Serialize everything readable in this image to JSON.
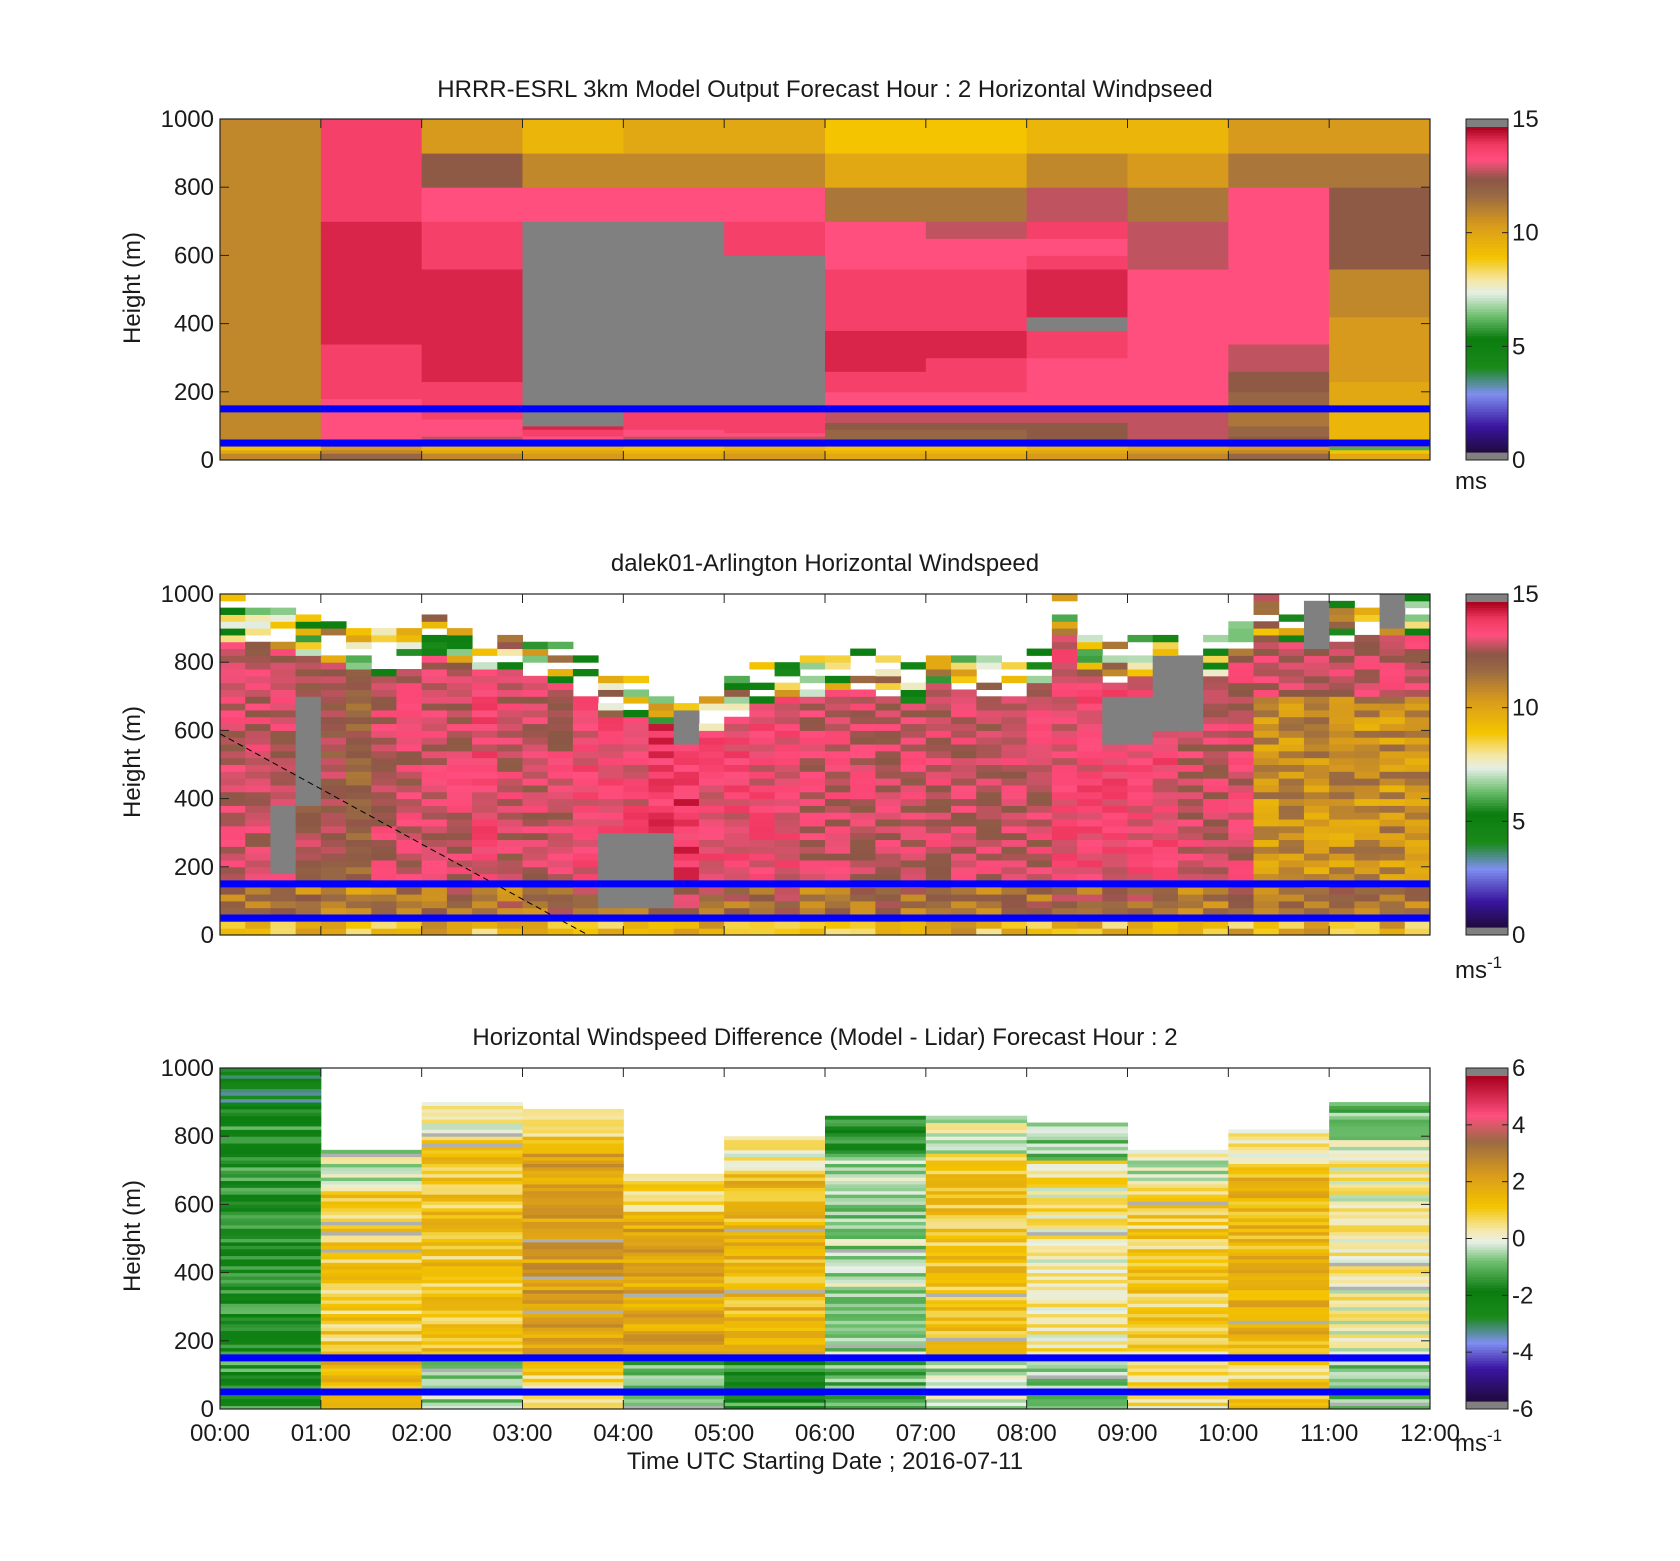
{
  "figure": {
    "panels": [
      {
        "title": "HRRR-ESRL 3km Model Output   Forecast Hour : 2 Horizontal Windpseed",
        "ylabel": "Height (m)",
        "colorbar_unit": "ms",
        "colorbar_sup": ""
      },
      {
        "title": "dalek01-Arlington  Horizontal Windspeed",
        "ylabel": "Height (m)",
        "colorbar_unit": "ms",
        "colorbar_sup": "-1"
      },
      {
        "title": "Horizontal Windspeed Difference (Model - Lidar) Forecast Hour : 2",
        "ylabel": "Height (m)",
        "colorbar_unit": "ms",
        "colorbar_sup": "-1"
      }
    ],
    "xlabel": "Time UTC  Starting Date ; 2016-07-11"
  },
  "chart_data": [
    {
      "type": "heatmap",
      "title": "HRRR-ESRL 3km Model Output   Forecast Hour : 2 Horizontal Windpseed",
      "ylabel": "Height (m)",
      "x_ticks": [
        "00:00",
        "01:00",
        "02:00",
        "03:00",
        "04:00",
        "05:00",
        "06:00",
        "07:00",
        "08:00",
        "09:00",
        "10:00",
        "11:00",
        "12:00"
      ],
      "xlim": [
        0,
        12
      ],
      "y_ticks": [
        0,
        200,
        400,
        600,
        800,
        1000
      ],
      "ylim": [
        0,
        1000
      ],
      "colorbar": {
        "range": [
          0,
          15
        ],
        "ticks": [
          0,
          5,
          10,
          15
        ],
        "unit": "ms"
      },
      "missing_color": "#808080",
      "x_step_hours": 1,
      "row_bounds_m": [
        0,
        20,
        30,
        40,
        50,
        60,
        70,
        80,
        90,
        100,
        110,
        120,
        130,
        140,
        150,
        160,
        180,
        200,
        230,
        260,
        300,
        340,
        380,
        420,
        470,
        510,
        560,
        600,
        650,
        700,
        800,
        900,
        1000
      ],
      "values": [
        [
          11.0,
          12.0,
          11.0,
          10.5,
          10.0,
          10.5,
          10.0,
          10.0,
          10.5,
          11.0,
          12.0,
          10.0
        ],
        [
          10.0,
          11.0,
          10.0,
          10.0,
          9.5,
          10.0,
          9.5,
          9.5,
          10.0,
          10.5,
          11.0,
          9.0
        ],
        [
          9.0,
          10.5,
          9.5,
          9.5,
          9.0,
          9.5,
          9.0,
          9.0,
          9.5,
          10.0,
          10.5,
          6.0
        ],
        [
          10.0,
          12.0,
          11.0,
          11.0,
          10.5,
          11.0,
          10.5,
          10.5,
          11.0,
          11.5,
          12.0,
          9.0
        ],
        [
          10.5,
          13.0,
          12.0,
          12.5,
          12.0,
          12.5,
          11.5,
          11.5,
          12.0,
          12.5,
          12.5,
          9.5
        ],
        [
          11.0,
          13.5,
          13.0,
          13.5,
          13.0,
          13.0,
          12.0,
          12.0,
          12.5,
          13.0,
          12.5,
          9.5
        ],
        [
          11.0,
          13.5,
          13.5,
          14.0,
          13.5,
          13.5,
          12.0,
          12.0,
          12.5,
          13.0,
          12.0,
          9.5
        ],
        [
          11.0,
          13.5,
          13.5,
          14.0,
          13.5,
          14.0,
          12.0,
          12.0,
          12.5,
          13.0,
          12.0,
          9.5
        ],
        [
          11.0,
          13.5,
          13.5,
          14.5,
          14.0,
          14.0,
          12.5,
          12.5,
          12.5,
          13.0,
          12.0,
          9.5
        ],
        [
          11.0,
          13.5,
          13.5,
          null,
          14.0,
          14.0,
          12.5,
          12.5,
          12.5,
          13.0,
          11.5,
          9.5
        ],
        [
          11.0,
          13.5,
          13.5,
          null,
          14.0,
          14.0,
          13.0,
          13.0,
          13.0,
          13.0,
          11.5,
          9.5
        ],
        [
          11.0,
          13.5,
          14.0,
          null,
          14.0,
          14.0,
          13.0,
          13.0,
          13.0,
          13.0,
          11.5,
          9.5
        ],
        [
          11.0,
          13.5,
          14.0,
          null,
          14.0,
          14.0,
          13.0,
          13.0,
          13.0,
          13.0,
          11.5,
          9.5
        ],
        [
          11.0,
          13.5,
          14.0,
          null,
          14.0,
          14.0,
          13.0,
          13.0,
          13.0,
          13.0,
          11.5,
          9.5
        ],
        [
          11.0,
          13.5,
          14.0,
          null,
          null,
          null,
          13.5,
          13.5,
          13.5,
          13.5,
          12.0,
          9.5
        ],
        [
          11.0,
          13.5,
          14.0,
          null,
          null,
          null,
          13.5,
          13.5,
          13.5,
          13.5,
          12.0,
          10.0
        ],
        [
          11.0,
          14.0,
          14.0,
          null,
          null,
          null,
          13.5,
          13.5,
          13.5,
          13.5,
          12.0,
          10.0
        ],
        [
          11.0,
          14.0,
          14.0,
          null,
          null,
          null,
          14.0,
          14.0,
          13.5,
          13.5,
          12.5,
          10.0
        ],
        [
          11.0,
          14.0,
          14.5,
          null,
          null,
          null,
          14.0,
          14.0,
          13.5,
          13.5,
          12.5,
          10.5
        ],
        [
          11.0,
          14.0,
          14.5,
          null,
          null,
          null,
          14.5,
          14.0,
          13.5,
          13.5,
          13.0,
          10.5
        ],
        [
          11.0,
          14.0,
          14.5,
          null,
          null,
          null,
          14.5,
          14.5,
          14.0,
          13.5,
          13.0,
          10.5
        ],
        [
          11.0,
          14.5,
          14.5,
          null,
          null,
          null,
          14.5,
          14.5,
          14.0,
          13.5,
          13.5,
          10.5
        ],
        [
          11.0,
          14.5,
          14.5,
          null,
          null,
          null,
          14.0,
          14.0,
          null,
          13.5,
          13.5,
          10.5
        ],
        [
          11.0,
          14.5,
          14.5,
          null,
          null,
          null,
          14.0,
          14.0,
          14.5,
          13.5,
          13.5,
          11.0
        ],
        [
          11.0,
          14.5,
          14.5,
          null,
          null,
          null,
          14.0,
          14.0,
          14.5,
          13.5,
          13.5,
          11.0
        ],
        [
          11.0,
          14.5,
          14.5,
          null,
          null,
          null,
          14.0,
          14.0,
          14.5,
          13.5,
          13.5,
          11.0
        ],
        [
          11.0,
          14.5,
          14.0,
          null,
          null,
          null,
          13.5,
          13.5,
          14.0,
          13.0,
          13.5,
          12.5
        ],
        [
          11.0,
          14.5,
          14.0,
          null,
          null,
          14.0,
          13.5,
          13.5,
          13.5,
          13.0,
          13.5,
          12.5
        ],
        [
          11.0,
          14.5,
          14.0,
          null,
          null,
          14.0,
          13.5,
          13.0,
          14.0,
          13.0,
          13.5,
          12.5
        ],
        [
          11.0,
          14.0,
          13.5,
          13.5,
          13.5,
          13.5,
          11.5,
          11.5,
          13.0,
          11.5,
          13.5,
          12.5
        ],
        [
          11.0,
          14.0,
          12.5,
          11.0,
          11.0,
          11.0,
          10.0,
          10.0,
          11.0,
          10.5,
          11.5,
          11.5
        ],
        [
          11.0,
          14.0,
          10.5,
          9.5,
          10.0,
          10.0,
          9.0,
          9.0,
          9.5,
          9.5,
          10.5,
          10.5
        ]
      ],
      "reference_lines_m": [
        50,
        150
      ]
    },
    {
      "type": "heatmap",
      "title": "dalek01-Arlington  Horizontal Windspeed",
      "ylabel": "Height (m)",
      "x_ticks": [
        "00:00",
        "01:00",
        "02:00",
        "03:00",
        "04:00",
        "05:00",
        "06:00",
        "07:00",
        "08:00",
        "09:00",
        "10:00",
        "11:00",
        "12:00"
      ],
      "xlim": [
        0,
        12
      ],
      "y_ticks": [
        0,
        200,
        400,
        600,
        800,
        1000
      ],
      "ylim": [
        0,
        1000
      ],
      "colorbar": {
        "range": [
          0,
          15
        ],
        "ticks": [
          0,
          5,
          10,
          15
        ],
        "unit": "ms",
        "unit_superscript": "-1"
      },
      "missing_color": "#808080",
      "x_step_hours": 0.25,
      "row_step_m": 20,
      "coverage": [
        {
          "t": 0.0,
          "top_m": 990,
          "hi": 13.5
        },
        {
          "t": 0.25,
          "top_m": 980,
          "hi": 13.5
        },
        {
          "t": 0.5,
          "top_m": 960,
          "hi": 13.5
        },
        {
          "t": 0.75,
          "top_m": 940,
          "hi": 13.0
        },
        {
          "t": 1.0,
          "top_m": 920,
          "hi": 13.0
        },
        {
          "t": 1.25,
          "top_m": 900,
          "hi": 12.5
        },
        {
          "t": 1.5,
          "top_m": 890,
          "hi": 13.5
        },
        {
          "t": 1.75,
          "top_m": 900,
          "hi": 13.5
        },
        {
          "t": 2.0,
          "top_m": 940,
          "hi": 13.5
        },
        {
          "t": 2.25,
          "top_m": 920,
          "hi": 13.5
        },
        {
          "t": 2.5,
          "top_m": 900,
          "hi": 14.0
        },
        {
          "t": 2.75,
          "top_m": 900,
          "hi": 13.5
        },
        {
          "t": 3.0,
          "top_m": 880,
          "hi": 13.5
        },
        {
          "t": 3.25,
          "top_m": 860,
          "hi": 13.5
        },
        {
          "t": 3.5,
          "top_m": 820,
          "hi": 14.0
        },
        {
          "t": 3.75,
          "top_m": 760,
          "hi": 14.0
        },
        {
          "t": 4.0,
          "top_m": 760,
          "hi": 14.0
        },
        {
          "t": 4.25,
          "top_m": 740,
          "hi": 14.5
        },
        {
          "t": 4.5,
          "top_m": 730,
          "hi": 14.5
        },
        {
          "t": 4.75,
          "top_m": 730,
          "hi": 14.0
        },
        {
          "t": 5.0,
          "top_m": 760,
          "hi": 14.0
        },
        {
          "t": 5.25,
          "top_m": 800,
          "hi": 14.0
        },
        {
          "t": 5.5,
          "top_m": 820,
          "hi": 14.0
        },
        {
          "t": 5.75,
          "top_m": 820,
          "hi": 13.5
        },
        {
          "t": 6.0,
          "top_m": 840,
          "hi": 13.5
        },
        {
          "t": 6.25,
          "top_m": 840,
          "hi": 13.5
        },
        {
          "t": 6.5,
          "top_m": 820,
          "hi": 13.5
        },
        {
          "t": 6.75,
          "top_m": 800,
          "hi": 13.5
        },
        {
          "t": 7.0,
          "top_m": 860,
          "hi": 13.5
        },
        {
          "t": 7.25,
          "top_m": 840,
          "hi": 13.5
        },
        {
          "t": 7.5,
          "top_m": 820,
          "hi": 13.5
        },
        {
          "t": 7.75,
          "top_m": 820,
          "hi": 13.5
        },
        {
          "t": 8.0,
          "top_m": 860,
          "hi": 13.5
        },
        {
          "t": 8.25,
          "top_m": 1000,
          "hi": 14.0
        },
        {
          "t": 8.5,
          "top_m": 880,
          "hi": 14.0
        },
        {
          "t": 8.75,
          "top_m": 860,
          "hi": 14.0
        },
        {
          "t": 9.0,
          "top_m": 880,
          "hi": 14.0
        },
        {
          "t": 9.25,
          "top_m": 880,
          "hi": 14.0
        },
        {
          "t": 9.5,
          "top_m": 880,
          "hi": 13.5
        },
        {
          "t": 9.75,
          "top_m": 880,
          "hi": 13.5
        },
        {
          "t": 10.0,
          "top_m": 940,
          "hi": 13.5
        },
        {
          "t": 10.25,
          "top_m": 1000,
          "hi": 13.5
        },
        {
          "t": 10.5,
          "top_m": 980,
          "hi": 13.5
        },
        {
          "t": 10.75,
          "top_m": 980,
          "hi": 13.5
        },
        {
          "t": 11.0,
          "top_m": 980,
          "hi": 13.5
        },
        {
          "t": 11.25,
          "top_m": 1000,
          "hi": 13.5
        },
        {
          "t": 11.5,
          "top_m": 1000,
          "hi": 13.5
        },
        {
          "t": 11.75,
          "top_m": 1000,
          "hi": 13.5
        }
      ],
      "missing_regions": [
        {
          "t0": 0.75,
          "t1": 1.0,
          "h0": 380,
          "h1": 700
        },
        {
          "t0": 0.5,
          "t1": 0.75,
          "h0": 180,
          "h1": 380
        },
        {
          "t0": 3.75,
          "t1": 4.5,
          "h0": 80,
          "h1": 300
        },
        {
          "t0": 4.5,
          "t1": 4.75,
          "h0": 560,
          "h1": 660
        },
        {
          "t0": 8.75,
          "t1": 9.25,
          "h0": 560,
          "h1": 700
        },
        {
          "t0": 9.25,
          "t1": 9.75,
          "h0": 600,
          "h1": 820
        },
        {
          "t0": 10.75,
          "t1": 11.0,
          "h0": 840,
          "h1": 1000
        },
        {
          "t0": 11.5,
          "t1": 11.75,
          "h0": 900,
          "h1": 1000
        }
      ],
      "reference_lines_m": [
        50,
        150
      ],
      "dashed_line": {
        "from": [
          0,
          590
        ],
        "to": [
          3.65,
          0
        ]
      }
    },
    {
      "type": "heatmap",
      "title": "Horizontal Windspeed Difference (Model - Lidar) Forecast Hour : 2",
      "ylabel": "Height (m)",
      "xlabel": "Time UTC  Starting Date ; 2016-07-11",
      "x_ticks": [
        "00:00",
        "01:00",
        "02:00",
        "03:00",
        "04:00",
        "05:00",
        "06:00",
        "07:00",
        "08:00",
        "09:00",
        "10:00",
        "11:00",
        "12:00"
      ],
      "xlim": [
        0,
        12
      ],
      "y_ticks": [
        0,
        200,
        400,
        600,
        800,
        1000
      ],
      "ylim": [
        0,
        1000
      ],
      "colorbar": {
        "range": [
          -6,
          6
        ],
        "ticks": [
          -6,
          -4,
          -2,
          0,
          2,
          4,
          6
        ],
        "unit": "ms",
        "unit_superscript": "-1"
      },
      "missing_color": "#808080",
      "x_step_hours": 1,
      "row_step_m": 10,
      "columns": [
        {
          "t": 0,
          "top_m": 1000,
          "mid": -1.6,
          "low": -1.5
        },
        {
          "t": 1,
          "top_m": 760,
          "mid": 1.0,
          "low": 1.5
        },
        {
          "t": 2,
          "top_m": 900,
          "mid": 1.2,
          "low": -0.5
        },
        {
          "t": 3,
          "top_m": 880,
          "mid": 2.2,
          "low": 0.8
        },
        {
          "t": 4,
          "top_m": 690,
          "mid": 2.0,
          "low": -1.0
        },
        {
          "t": 5,
          "top_m": 800,
          "mid": 1.5,
          "low": -1.5
        },
        {
          "t": 6,
          "top_m": 860,
          "mid": -0.5,
          "low": -1.0
        },
        {
          "t": 7,
          "top_m": 860,
          "mid": 1.2,
          "low": -0.3
        },
        {
          "t": 8,
          "top_m": 840,
          "mid": 0.4,
          "low": -0.5
        },
        {
          "t": 9,
          "top_m": 760,
          "mid": 1.0,
          "low": 0.5
        },
        {
          "t": 10,
          "top_m": 820,
          "mid": 1.6,
          "low": 1.0
        },
        {
          "t": 11,
          "top_m": 900,
          "mid": 0.2,
          "low": -1.0
        }
      ],
      "reference_lines_m": [
        50,
        150
      ]
    }
  ]
}
